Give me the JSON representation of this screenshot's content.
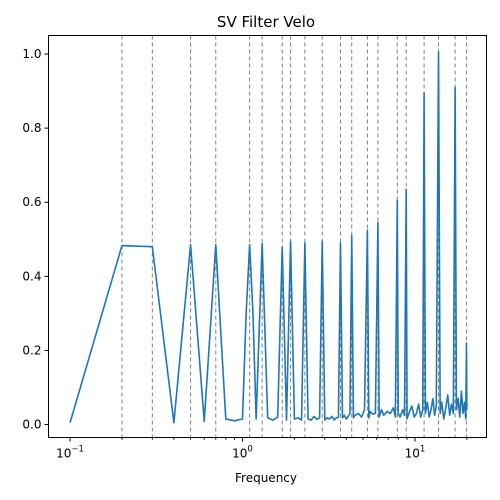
{
  "chart_data": {
    "type": "line",
    "title": "SV Filter Velo",
    "xlabel": "Frequency",
    "ylabel": "",
    "xscale": "log",
    "xlim": [
      0.075,
      26
    ],
    "ylim": [
      -0.035,
      1.05
    ],
    "x_ticks": [
      {
        "value": 0.1,
        "base": "10",
        "exp": "−1"
      },
      {
        "value": 1,
        "base": "10",
        "exp": "0"
      },
      {
        "value": 10,
        "base": "10",
        "exp": "1"
      }
    ],
    "y_ticks": [
      {
        "value": 0.0,
        "label": "0.0"
      },
      {
        "value": 0.2,
        "label": "0.2"
      },
      {
        "value": 0.4,
        "label": "0.4"
      },
      {
        "value": 0.6,
        "label": "0.6"
      },
      {
        "value": 0.8,
        "label": "0.8"
      },
      {
        "value": 1.0,
        "label": "1.0"
      }
    ],
    "vlines": [
      0.2,
      0.3,
      0.5,
      0.7,
      1.1,
      1.3,
      1.7,
      1.9,
      2.3,
      2.9,
      3.7,
      4.3,
      5.3,
      6.1,
      7.9,
      8.9,
      11.3,
      13.7,
      17.1,
      19.9
    ],
    "colors": {
      "series": "#1f77b4",
      "vlines": "#808080"
    },
    "grid": false,
    "x": [
      0.1,
      0.2,
      0.3,
      0.4,
      0.5,
      0.6,
      0.7,
      0.8,
      0.9,
      1.0,
      1.05,
      1.1,
      1.15,
      1.2,
      1.3,
      1.4,
      1.5,
      1.6,
      1.7,
      1.8,
      1.9,
      2.0,
      2.1,
      2.2,
      2.3,
      2.4,
      2.5,
      2.6,
      2.7,
      2.8,
      2.9,
      3.0,
      3.1,
      3.2,
      3.3,
      3.4,
      3.5,
      3.6,
      3.7,
      3.8,
      3.9,
      4.0,
      4.1,
      4.2,
      4.3,
      4.4,
      4.5,
      4.7,
      4.9,
      5.1,
      5.3,
      5.4,
      5.5,
      5.7,
      5.9,
      6.1,
      6.2,
      6.4,
      6.6,
      6.9,
      7.2,
      7.5,
      7.7,
      7.9,
      8.0,
      8.2,
      8.5,
      8.7,
      8.9,
      9.0,
      9.3,
      9.6,
      9.9,
      10.2,
      10.5,
      10.8,
      11.1,
      11.3,
      11.5,
      11.8,
      12.1,
      12.4,
      12.7,
      13.0,
      13.3,
      13.7,
      14.0,
      14.3,
      14.7,
      15.1,
      15.5,
      15.9,
      16.3,
      16.7,
      17.1,
      17.4,
      17.8,
      18.2,
      18.6,
      19.0,
      19.4,
      19.7,
      19.9,
      20.0
    ],
    "y": [
      0.005,
      0.483,
      0.48,
      0.005,
      0.485,
      0.008,
      0.485,
      0.015,
      0.01,
      0.015,
      0.3,
      0.485,
      0.3,
      0.015,
      0.488,
      0.018,
      0.012,
      0.02,
      0.478,
      0.012,
      0.495,
      0.015,
      0.018,
      0.012,
      0.49,
      0.015,
      0.012,
      0.022,
      0.014,
      0.018,
      0.495,
      0.012,
      0.018,
      0.015,
      0.022,
      0.012,
      0.018,
      0.02,
      0.49,
      0.018,
      0.025,
      0.015,
      0.022,
      0.03,
      0.51,
      0.018,
      0.025,
      0.03,
      0.02,
      0.04,
      0.525,
      0.018,
      0.035,
      0.028,
      0.03,
      0.545,
      0.02,
      0.04,
      0.025,
      0.035,
      0.03,
      0.045,
      0.02,
      0.605,
      0.03,
      0.02,
      0.04,
      0.025,
      0.635,
      0.015,
      0.035,
      0.05,
      0.02,
      0.03,
      0.055,
      0.02,
      0.04,
      0.895,
      0.03,
      0.06,
      0.02,
      0.04,
      0.07,
      0.025,
      0.05,
      1.005,
      0.03,
      0.06,
      0.015,
      0.045,
      0.08,
      0.025,
      0.055,
      0.03,
      0.91,
      0.04,
      0.07,
      0.02,
      0.09,
      0.03,
      0.06,
      0.015,
      0.22,
      0.04
    ]
  }
}
